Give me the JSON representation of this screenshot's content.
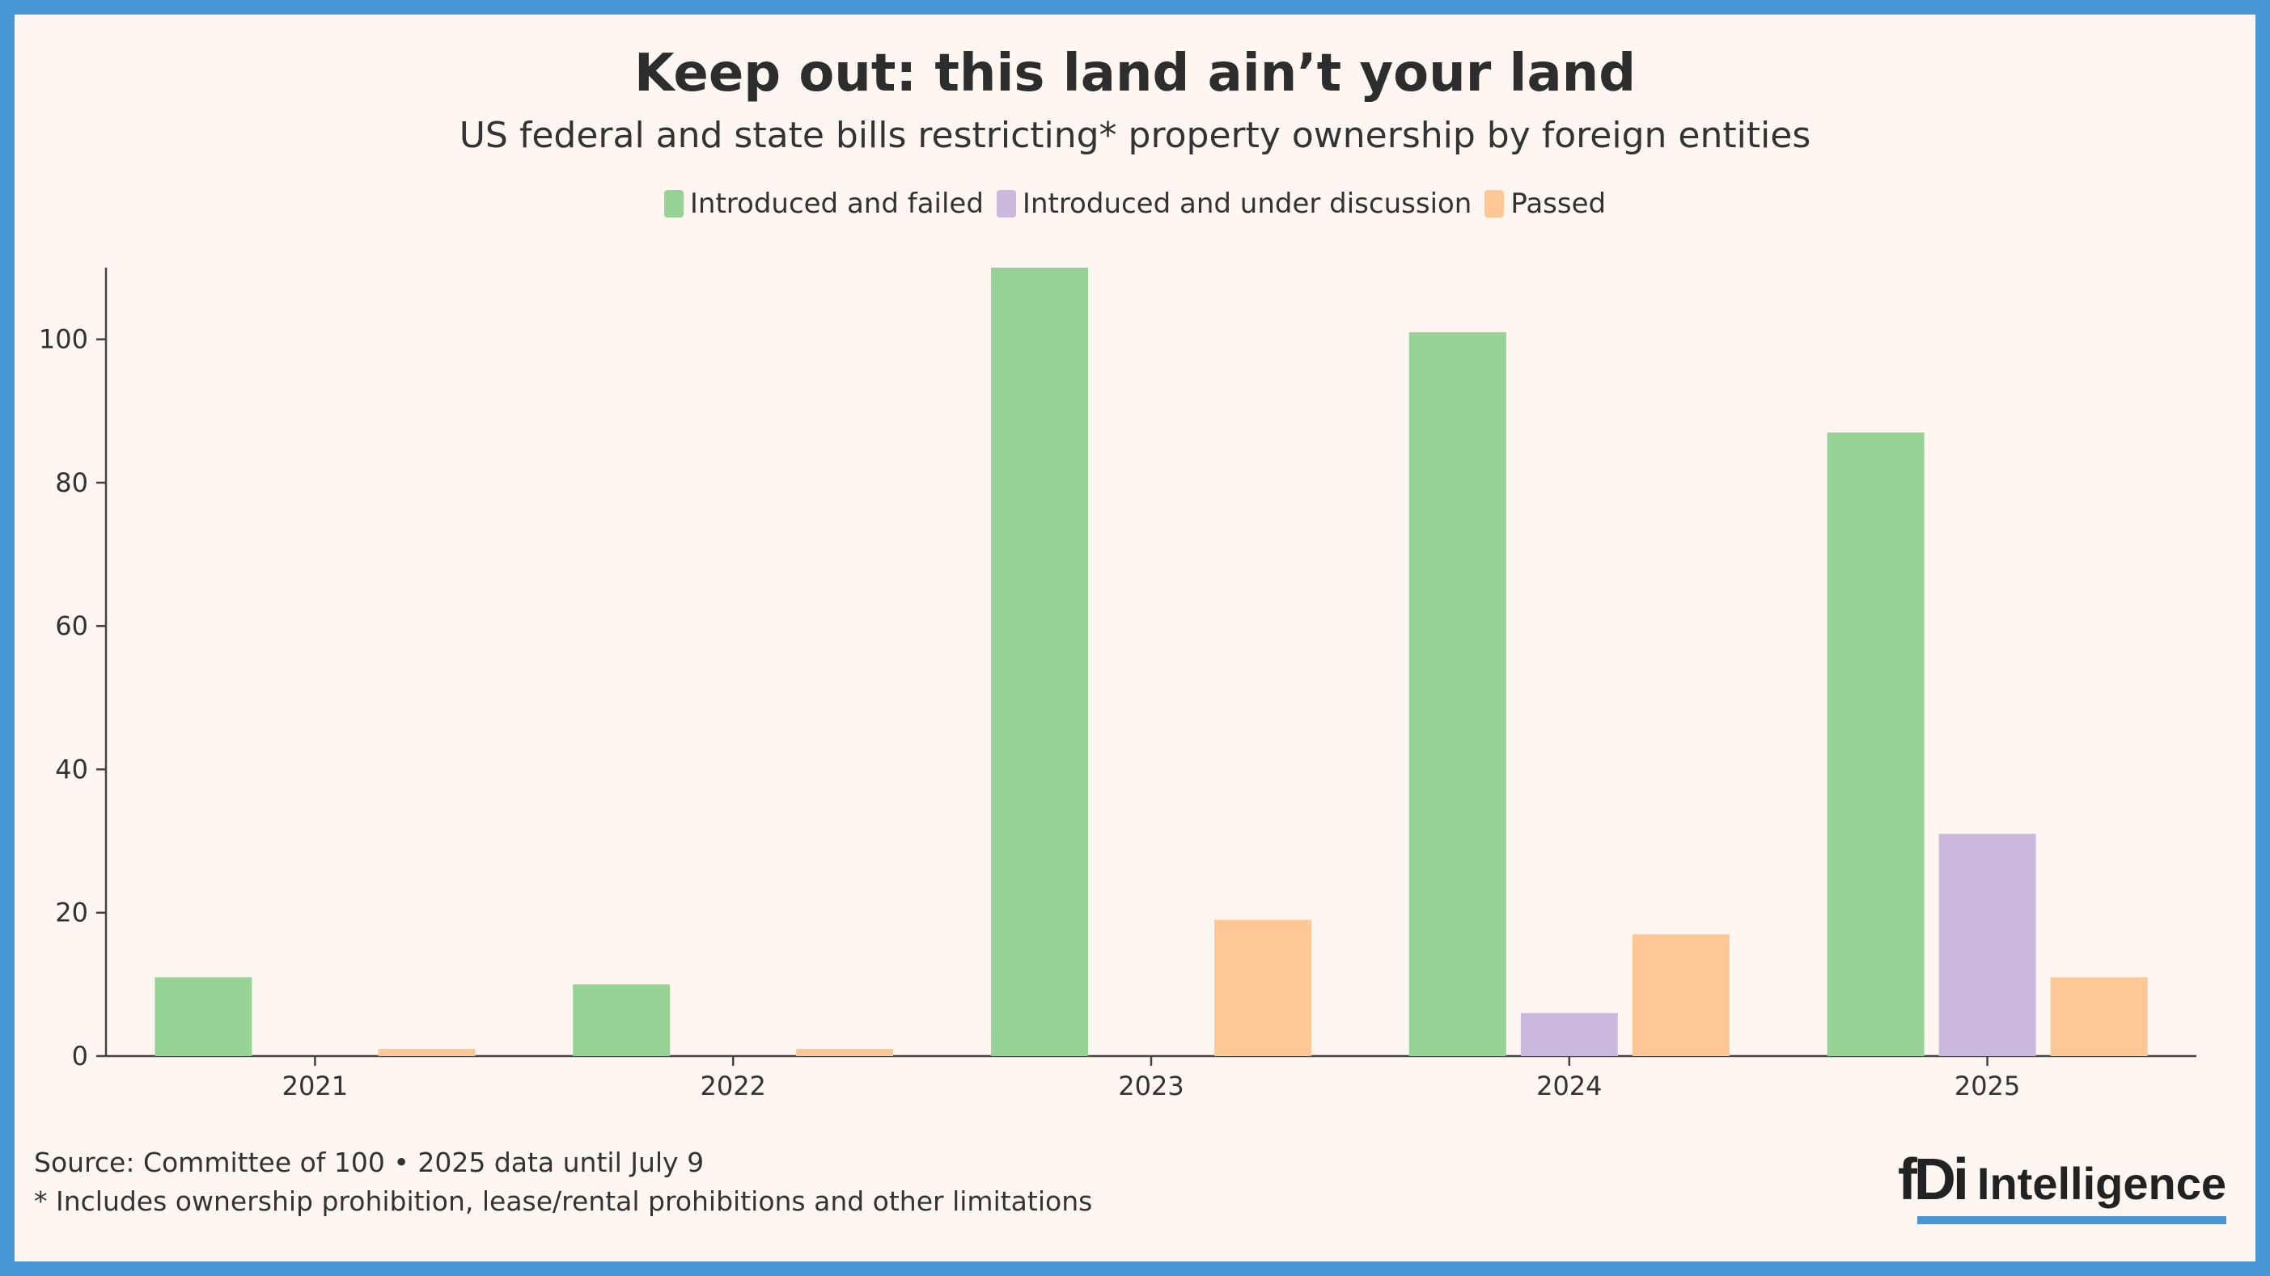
{
  "chart_data": {
    "type": "bar",
    "title": "Keep out: this land ain’t your land",
    "subtitle": "US federal and state bills restricting* property ownership by foreign entities",
    "categories": [
      "2021",
      "2022",
      "2023",
      "2024",
      "2025"
    ],
    "series": [
      {
        "name": "Introduced and failed",
        "color": "#97d394",
        "values": [
          11,
          10,
          110,
          101,
          87
        ]
      },
      {
        "name": "Introduced and under discussion",
        "color": "#cbb9dd",
        "values": [
          0,
          0,
          0,
          6,
          31
        ]
      },
      {
        "name": "Passed",
        "color": "#fdc796",
        "values": [
          1,
          1,
          19,
          17,
          11
        ]
      }
    ],
    "yticks": [
      "0",
      "20",
      "40",
      "60",
      "80",
      "100"
    ],
    "ylim": [
      0,
      110
    ],
    "legend": "top-center",
    "grid": false
  },
  "footer": {
    "source": "Source: Committee of 100 • 2025 data until July 9",
    "note": "* Includes ownership prohibition, lease/rental prohibitions and other limitations"
  },
  "logo": {
    "brand": "fDi",
    "name": "Intelligence"
  }
}
